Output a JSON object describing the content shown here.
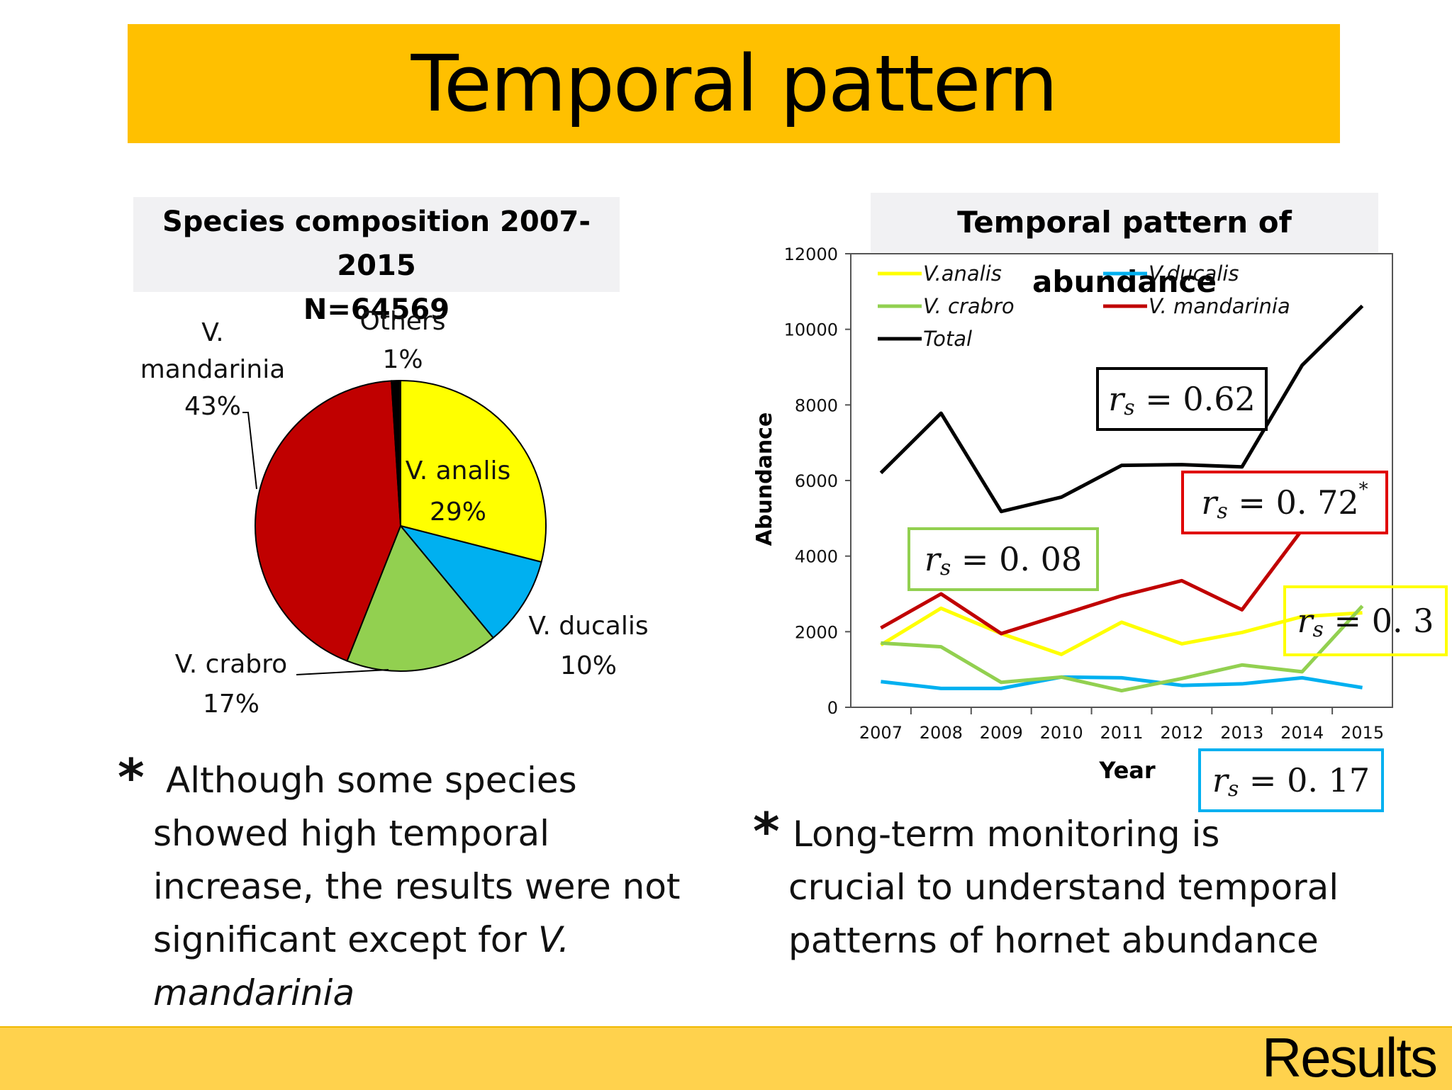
{
  "slide": {
    "title": "Temporal pattern",
    "footer": "Results"
  },
  "chart_data": [
    {
      "type": "pie",
      "title": "Species composition 2007-2015",
      "subtitle": "N=64569",
      "slices": [
        {
          "name": "V. analis",
          "value": 29,
          "label": "29%",
          "color": "#FFFF00"
        },
        {
          "name": "V. ducalis",
          "value": 10,
          "label": "10%",
          "color": "#00B0F0"
        },
        {
          "name": "V. crabro",
          "value": 17,
          "label": "17%",
          "color": "#92D050"
        },
        {
          "name": "V. mandarinia",
          "value": 43,
          "label": "43%",
          "color": "#C00000"
        },
        {
          "name": "Others",
          "value": 1,
          "label": "1%",
          "color": "#000000"
        }
      ]
    },
    {
      "type": "line",
      "title": "Temporal pattern of abundance",
      "xlabel": "Year",
      "ylabel": "Abundance",
      "ylim": [
        0,
        12000
      ],
      "yticks": [
        "0",
        "2000",
        "4000",
        "6000",
        "8000",
        "10000",
        "12000"
      ],
      "x": [
        "2007",
        "2008",
        "2009",
        "2010",
        "2011",
        "2012",
        "2013",
        "2014",
        "2015"
      ],
      "legend_position": "top-left",
      "grid": false,
      "series": [
        {
          "name": "V.analis",
          "color": "#FFFF00",
          "values": [
            1650,
            2620,
            1950,
            1400,
            2250,
            1680,
            1980,
            2400,
            2500
          ]
        },
        {
          "name": "V.ducalis",
          "color": "#00B0F0",
          "values": [
            680,
            500,
            500,
            800,
            780,
            580,
            620,
            780,
            520
          ]
        },
        {
          "name": "V. crabro",
          "color": "#92D050",
          "values": [
            1700,
            1600,
            660,
            800,
            440,
            760,
            1120,
            940,
            2680
          ]
        },
        {
          "name": "V. mandarinia",
          "color": "#C00000",
          "values": [
            2100,
            3000,
            1950,
            2450,
            2950,
            3350,
            2580,
            4700,
            4650
          ]
        },
        {
          "name": "Total",
          "color": "#000000",
          "values": [
            6200,
            7780,
            5180,
            5560,
            6400,
            6420,
            6360,
            9050,
            10620
          ]
        }
      ],
      "annotations": [
        {
          "r": "r",
          "sub": "s",
          "text": " = 0.62",
          "sup": "",
          "color": "#000000"
        },
        {
          "r": "r",
          "sub": "s",
          "text": " = 0. 72",
          "sup": "*",
          "color": "#E00000"
        },
        {
          "r": "r",
          "sub": "s",
          "text": " = 0. 08",
          "sup": "",
          "color": "#92D050"
        },
        {
          "r": "r",
          "sub": "s",
          "text": " = 0. 3",
          "sup": "",
          "color": "#FFFF00"
        },
        {
          "r": "r",
          "sub": "s",
          "text": " = 0. 17",
          "sup": "",
          "color": "#00B0F0"
        }
      ]
    }
  ],
  "bullets": [
    {
      "star": "*",
      "lines": [
        "Although some species",
        "showed high temporal",
        "increase, the results were not"
      ],
      "line4_pre": "significant except for ",
      "line4_em": "V.",
      "line5_em": "mandarinia"
    },
    {
      "star": "*",
      "lines": [
        "Long-term monitoring is",
        "crucial to understand temporal",
        "patterns of hornet abundance"
      ]
    }
  ]
}
